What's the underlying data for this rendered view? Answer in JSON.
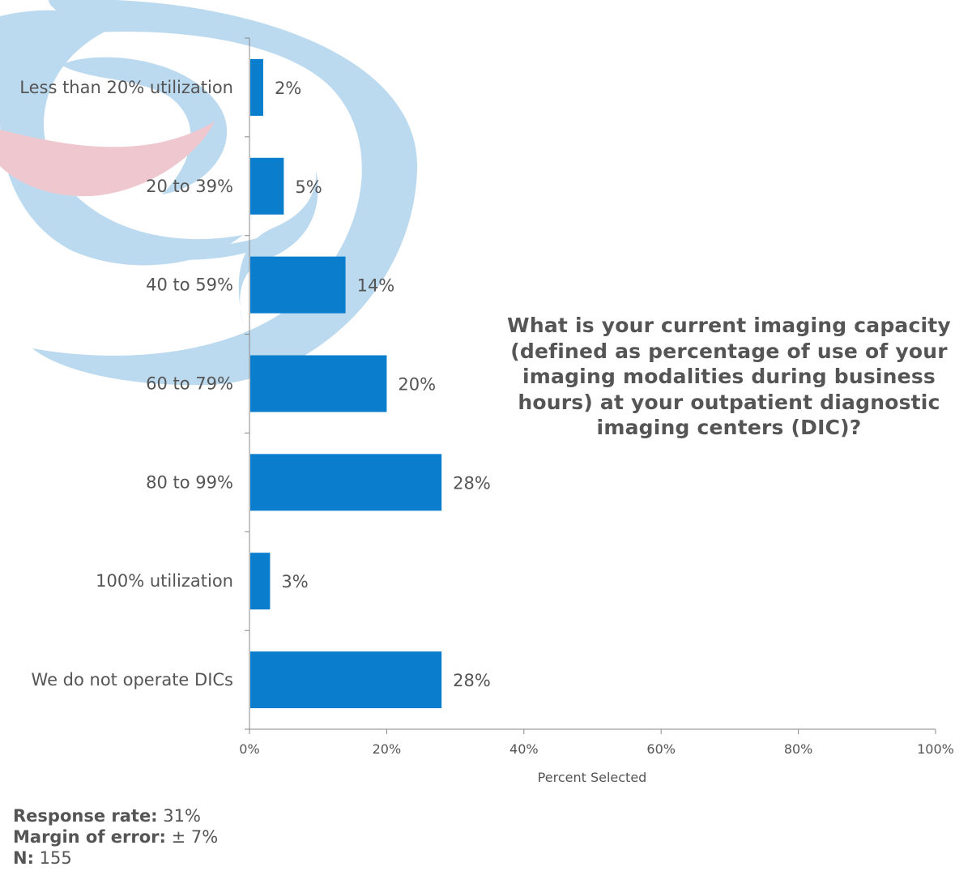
{
  "question": "What is your current imaging capacity (defined as percentage of use of your imaging modalities during business hours) at your outpatient diagnostic imaging centers (DIC)?",
  "colors": {
    "bar": "#0a7ecc",
    "text": "#555555",
    "axis": "#888888",
    "watermark_blue": "#bcdaef",
    "watermark_pink": "#efc8cf"
  },
  "chart_data": {
    "type": "bar",
    "orientation": "horizontal",
    "categories": [
      "Less than 20% utilization",
      "20 to 39%",
      "40 to 59%",
      "60 to 79%",
      "80 to 99%",
      "100% utilization",
      "We do not operate DICs"
    ],
    "values": [
      2,
      5,
      14,
      20,
      28,
      3,
      28
    ],
    "value_labels": [
      "2%",
      "5%",
      "14%",
      "20%",
      "28%",
      "3%",
      "28%"
    ],
    "xlabel": "Percent Selected",
    "xlim": [
      0,
      100
    ],
    "xticks": [
      "0%",
      "20%",
      "40%",
      "60%",
      "80%",
      "100%"
    ],
    "grid": false,
    "legend": "none"
  },
  "stats": {
    "response_rate_label": "Response rate:",
    "response_rate_value": "31%",
    "margin_label": "Margin of error:",
    "margin_value": "± 7%",
    "n_label": "N:",
    "n_value": "155"
  }
}
